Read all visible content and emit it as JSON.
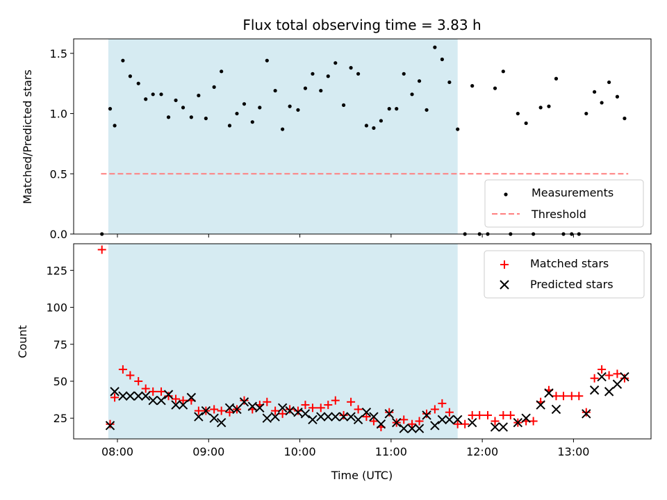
{
  "chart_data": {
    "title": "Flux total observing time = 3.83 h",
    "xlabel": "Time (UTC)",
    "x_ticks": [
      {
        "hour": 8,
        "label": "08:00"
      },
      {
        "hour": 9,
        "label": "09:00"
      },
      {
        "hour": 10,
        "label": "10:00"
      },
      {
        "hour": 11,
        "label": "11:00"
      },
      {
        "hour": 12,
        "label": "12:00"
      },
      {
        "hour": 13,
        "label": "13:00"
      }
    ],
    "xlim": [
      7.52,
      13.85
    ],
    "shaded_region": {
      "x_start": 7.9,
      "x_end": 11.73,
      "color": "#add8e6"
    },
    "colors": {
      "measurement": "#000000",
      "threshold": "#ff7f7f",
      "matched": "#ff0000",
      "predicted": "#000000"
    },
    "top": {
      "type": "scatter",
      "ylabel": "Matched/Predicted stars",
      "ylim": [
        0,
        1.62
      ],
      "y_ticks": [
        {
          "value": 0,
          "label": "0.0"
        },
        {
          "value": 0.5,
          "label": "0.5"
        },
        {
          "value": 1.0,
          "label": "1.0"
        },
        {
          "value": 1.5,
          "label": "1.5"
        }
      ],
      "threshold": {
        "value": 0.5,
        "x_start": 7.82,
        "x_end": 13.6
      },
      "legend": {
        "placement": "lower-right",
        "entries": [
          "Measurements",
          "Threshold"
        ]
      },
      "measurements": [
        [
          7.83,
          0.0
        ],
        [
          7.92,
          1.04
        ],
        [
          7.97,
          0.9
        ],
        [
          8.06,
          1.44
        ],
        [
          8.14,
          1.31
        ],
        [
          8.23,
          1.25
        ],
        [
          8.31,
          1.12
        ],
        [
          8.39,
          1.16
        ],
        [
          8.48,
          1.16
        ],
        [
          8.56,
          0.97
        ],
        [
          8.64,
          1.11
        ],
        [
          8.72,
          1.05
        ],
        [
          8.81,
          0.97
        ],
        [
          8.89,
          1.15
        ],
        [
          8.97,
          0.96
        ],
        [
          9.06,
          1.22
        ],
        [
          9.14,
          1.35
        ],
        [
          9.23,
          0.9
        ],
        [
          9.31,
          1.0
        ],
        [
          9.39,
          1.08
        ],
        [
          9.48,
          0.93
        ],
        [
          9.56,
          1.05
        ],
        [
          9.64,
          1.44
        ],
        [
          9.73,
          1.19
        ],
        [
          9.81,
          0.87
        ],
        [
          9.89,
          1.06
        ],
        [
          9.98,
          1.03
        ],
        [
          10.06,
          1.21
        ],
        [
          10.14,
          1.33
        ],
        [
          10.23,
          1.19
        ],
        [
          10.31,
          1.31
        ],
        [
          10.39,
          1.42
        ],
        [
          10.48,
          1.07
        ],
        [
          10.56,
          1.38
        ],
        [
          10.64,
          1.33
        ],
        [
          10.73,
          0.9
        ],
        [
          10.81,
          0.88
        ],
        [
          10.89,
          0.94
        ],
        [
          10.98,
          1.04
        ],
        [
          11.06,
          1.04
        ],
        [
          11.14,
          1.33
        ],
        [
          11.23,
          1.16
        ],
        [
          11.31,
          1.27
        ],
        [
          11.39,
          1.03
        ],
        [
          11.48,
          1.55
        ],
        [
          11.56,
          1.45
        ],
        [
          11.64,
          1.26
        ],
        [
          11.73,
          0.87
        ],
        [
          11.81,
          0.0
        ],
        [
          11.89,
          1.23
        ],
        [
          11.97,
          0.0
        ],
        [
          12.06,
          0.0
        ],
        [
          12.14,
          1.21
        ],
        [
          12.23,
          1.35
        ],
        [
          12.31,
          0.0
        ],
        [
          12.39,
          1.0
        ],
        [
          12.48,
          0.92
        ],
        [
          12.56,
          0.0
        ],
        [
          12.64,
          1.05
        ],
        [
          12.73,
          1.06
        ],
        [
          12.81,
          1.29
        ],
        [
          12.89,
          0.0
        ],
        [
          12.98,
          0.0
        ],
        [
          13.06,
          0.0
        ],
        [
          13.14,
          1.0
        ],
        [
          13.23,
          1.18
        ],
        [
          13.31,
          1.09
        ],
        [
          13.39,
          1.26
        ],
        [
          13.48,
          1.14
        ],
        [
          13.56,
          0.96
        ]
      ]
    },
    "bottom": {
      "type": "scatter",
      "ylabel": "Count",
      "ylim": [
        11,
        143
      ],
      "y_ticks": [
        {
          "value": 25,
          "label": "25"
        },
        {
          "value": 50,
          "label": "50"
        },
        {
          "value": 75,
          "label": "75"
        },
        {
          "value": 100,
          "label": "100"
        },
        {
          "value": 125,
          "label": "125"
        }
      ],
      "legend": {
        "placement": "upper-right",
        "entries": [
          "Matched stars",
          "Predicted stars"
        ]
      },
      "matched": [
        [
          7.83,
          139
        ],
        [
          7.92,
          21
        ],
        [
          7.97,
          39
        ],
        [
          8.06,
          58
        ],
        [
          8.14,
          54
        ],
        [
          8.23,
          50
        ],
        [
          8.31,
          45
        ],
        [
          8.39,
          43
        ],
        [
          8.48,
          43
        ],
        [
          8.56,
          40
        ],
        [
          8.64,
          38
        ],
        [
          8.72,
          37
        ],
        [
          8.81,
          37
        ],
        [
          8.89,
          30
        ],
        [
          8.97,
          30
        ],
        [
          9.06,
          31
        ],
        [
          9.14,
          30
        ],
        [
          9.23,
          29
        ],
        [
          9.31,
          31
        ],
        [
          9.39,
          37
        ],
        [
          9.48,
          31
        ],
        [
          9.56,
          34
        ],
        [
          9.64,
          36
        ],
        [
          9.73,
          30
        ],
        [
          9.81,
          28
        ],
        [
          9.89,
          31
        ],
        [
          9.98,
          30
        ],
        [
          10.06,
          34
        ],
        [
          10.14,
          32
        ],
        [
          10.23,
          32
        ],
        [
          10.31,
          34
        ],
        [
          10.39,
          37
        ],
        [
          10.48,
          27
        ],
        [
          10.56,
          36
        ],
        [
          10.64,
          31
        ],
        [
          10.73,
          26
        ],
        [
          10.81,
          23
        ],
        [
          10.89,
          19
        ],
        [
          10.98,
          29
        ],
        [
          11.06,
          22
        ],
        [
          11.14,
          24
        ],
        [
          11.23,
          21
        ],
        [
          11.31,
          23
        ],
        [
          11.39,
          28
        ],
        [
          11.48,
          31
        ],
        [
          11.56,
          35
        ],
        [
          11.64,
          29
        ],
        [
          11.73,
          21
        ],
        [
          11.81,
          21
        ],
        [
          11.89,
          27
        ],
        [
          11.97,
          27
        ],
        [
          12.06,
          27
        ],
        [
          12.14,
          23
        ],
        [
          12.23,
          27
        ],
        [
          12.31,
          27
        ],
        [
          12.39,
          22
        ],
        [
          12.48,
          23
        ],
        [
          12.56,
          23
        ],
        [
          12.64,
          36
        ],
        [
          12.73,
          44
        ],
        [
          12.81,
          40
        ],
        [
          12.89,
          40
        ],
        [
          12.98,
          40
        ],
        [
          13.06,
          40
        ],
        [
          13.14,
          29
        ],
        [
          13.23,
          52
        ],
        [
          13.31,
          58
        ],
        [
          13.39,
          54
        ],
        [
          13.48,
          55
        ],
        [
          13.56,
          52
        ]
      ],
      "predicted": [
        [
          7.92,
          20
        ],
        [
          7.97,
          43
        ],
        [
          8.06,
          40
        ],
        [
          8.14,
          40
        ],
        [
          8.23,
          40
        ],
        [
          8.31,
          40
        ],
        [
          8.39,
          37
        ],
        [
          8.48,
          37
        ],
        [
          8.56,
          41
        ],
        [
          8.64,
          34
        ],
        [
          8.72,
          34
        ],
        [
          8.81,
          39
        ],
        [
          8.89,
          26
        ],
        [
          8.97,
          30
        ],
        [
          9.06,
          25
        ],
        [
          9.14,
          22
        ],
        [
          9.23,
          32
        ],
        [
          9.31,
          31
        ],
        [
          9.39,
          36
        ],
        [
          9.48,
          33
        ],
        [
          9.56,
          32
        ],
        [
          9.64,
          25
        ],
        [
          9.73,
          26
        ],
        [
          9.81,
          32
        ],
        [
          9.89,
          30
        ],
        [
          9.98,
          29
        ],
        [
          10.06,
          28
        ],
        [
          10.14,
          24
        ],
        [
          10.23,
          26
        ],
        [
          10.31,
          26
        ],
        [
          10.39,
          26
        ],
        [
          10.48,
          26
        ],
        [
          10.56,
          26
        ],
        [
          10.64,
          24
        ],
        [
          10.73,
          29
        ],
        [
          10.81,
          26
        ],
        [
          10.89,
          21
        ],
        [
          10.98,
          28
        ],
        [
          11.06,
          22
        ],
        [
          11.14,
          18
        ],
        [
          11.23,
          18
        ],
        [
          11.31,
          18
        ],
        [
          11.39,
          27
        ],
        [
          11.48,
          20
        ],
        [
          11.56,
          24
        ],
        [
          11.64,
          24
        ],
        [
          11.73,
          24
        ],
        [
          11.89,
          22
        ],
        [
          12.14,
          19
        ],
        [
          12.23,
          19
        ],
        [
          12.39,
          22
        ],
        [
          12.48,
          25
        ],
        [
          12.64,
          34
        ],
        [
          12.73,
          42
        ],
        [
          12.81,
          31
        ],
        [
          13.14,
          28
        ],
        [
          13.23,
          44
        ],
        [
          13.31,
          53
        ],
        [
          13.39,
          43
        ],
        [
          13.48,
          48
        ],
        [
          13.56,
          53
        ]
      ]
    }
  }
}
